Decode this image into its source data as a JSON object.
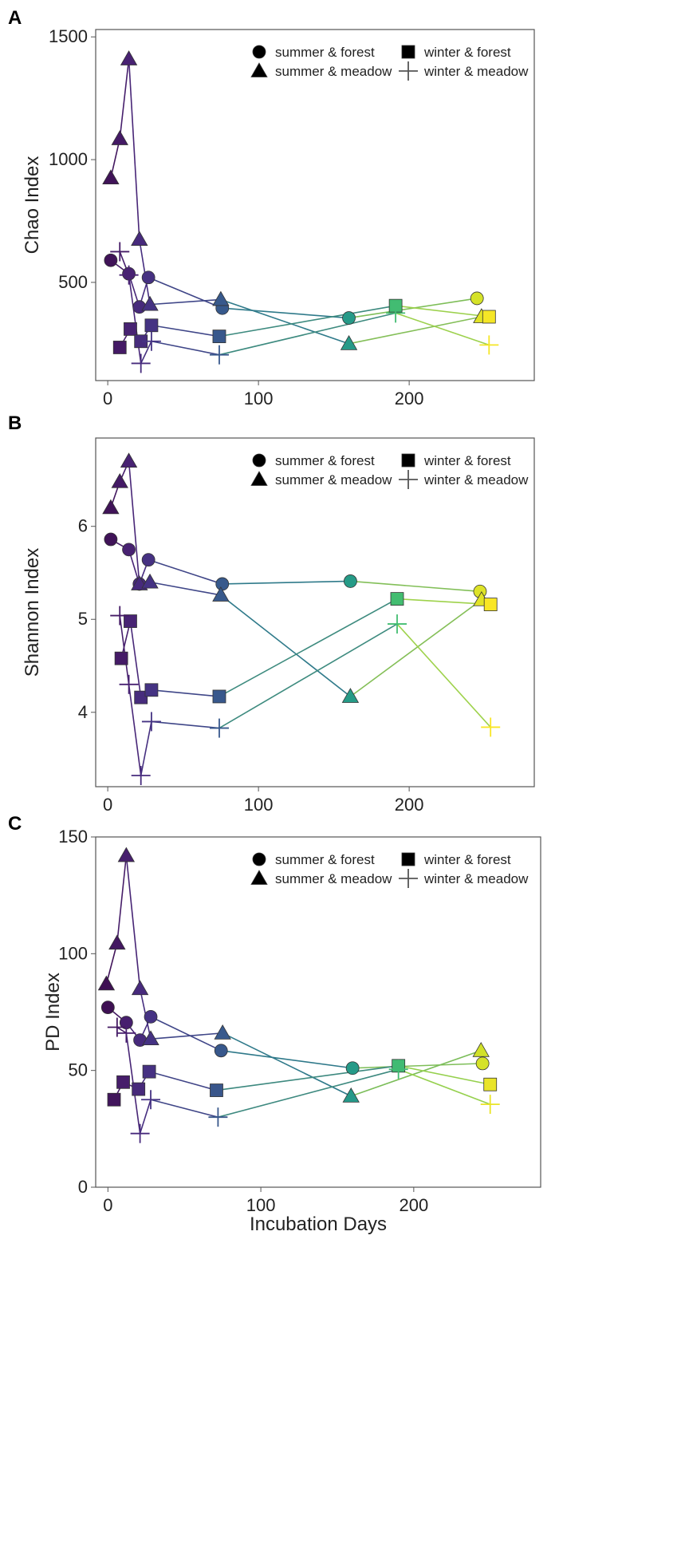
{
  "figure": {
    "xlabel": "Incubation Days"
  },
  "chart_data": [
    {
      "type": "scatter",
      "panel": "A",
      "title": "",
      "xlabel": "",
      "ylabel": "Chao Index",
      "xlim": [
        -8,
        283
      ],
      "ylim": [
        100,
        1530
      ],
      "xticks": [
        0,
        100,
        200
      ],
      "xtick_labels": [
        "0",
        "100",
        "200"
      ],
      "yticks": [
        500,
        1000,
        1500
      ],
      "ytick_labels": [
        "500",
        "1000",
        "1500"
      ],
      "legend": [
        {
          "label": "summer & forest",
          "marker": "circle"
        },
        {
          "label": "summer & meadow",
          "marker": "triangle"
        },
        {
          "label": "winter & forest",
          "marker": "square"
        },
        {
          "label": "winter & meadow",
          "marker": "plus"
        }
      ],
      "series": [
        {
          "name": "summer & forest",
          "marker": "circle",
          "x": [
            2,
            14,
            21,
            27,
            76,
            160,
            245
          ],
          "y": [
            590,
            535,
            400,
            520,
            395,
            355,
            435
          ]
        },
        {
          "name": "summer & meadow",
          "marker": "triangle",
          "x": [
            2,
            8,
            14,
            21,
            28,
            75,
            160,
            248
          ],
          "y": [
            925,
            1085,
            1410,
            675,
            410,
            430,
            250,
            360
          ]
        },
        {
          "name": "winter & forest",
          "marker": "square",
          "x": [
            8,
            15,
            22,
            29,
            74,
            191,
            253
          ],
          "y": [
            235,
            310,
            260,
            325,
            280,
            405,
            360
          ]
        },
        {
          "name": "winter & meadow",
          "marker": "plus",
          "x": [
            8,
            14,
            22,
            29,
            74,
            191,
            253
          ],
          "y": [
            625,
            530,
            170,
            260,
            205,
            375,
            245
          ]
        }
      ]
    },
    {
      "type": "scatter",
      "panel": "B",
      "title": "",
      "xlabel": "",
      "ylabel": "Shannon Index",
      "xlim": [
        -8,
        283
      ],
      "ylim": [
        3.2,
        6.95
      ],
      "xticks": [
        0,
        100,
        200
      ],
      "xtick_labels": [
        "0",
        "100",
        "200"
      ],
      "yticks": [
        4,
        5,
        6
      ],
      "ytick_labels": [
        "4",
        "5",
        "6"
      ],
      "legend": [
        {
          "label": "summer & forest",
          "marker": "circle"
        },
        {
          "label": "summer & meadow",
          "marker": "triangle"
        },
        {
          "label": "winter & forest",
          "marker": "square"
        },
        {
          "label": "winter & meadow",
          "marker": "plus"
        }
      ],
      "series": [
        {
          "name": "summer & forest",
          "marker": "circle",
          "x": [
            2,
            14,
            21,
            27,
            76,
            161,
            247
          ],
          "y": [
            5.86,
            5.75,
            5.38,
            5.64,
            5.38,
            5.41,
            5.3
          ]
        },
        {
          "name": "summer & meadow",
          "marker": "triangle",
          "x": [
            2,
            8,
            14,
            21,
            28,
            75,
            161,
            248
          ],
          "y": [
            6.2,
            6.48,
            6.7,
            5.38,
            5.4,
            5.26,
            4.17,
            5.21
          ]
        },
        {
          "name": "winter & forest",
          "marker": "square",
          "x": [
            9,
            15,
            22,
            29,
            74,
            192,
            254
          ],
          "y": [
            4.58,
            4.98,
            4.16,
            4.24,
            4.17,
            5.22,
            5.16
          ]
        },
        {
          "name": "winter & meadow",
          "marker": "plus",
          "x": [
            8,
            14,
            22,
            29,
            74,
            192,
            254
          ],
          "y": [
            5.04,
            4.3,
            3.32,
            3.9,
            3.83,
            4.95,
            3.84
          ]
        }
      ]
    },
    {
      "type": "scatter",
      "panel": "C",
      "title": "",
      "xlabel": "Incubation Days",
      "ylabel": "PD Index",
      "xlim": [
        -8,
        283
      ],
      "ylim": [
        0,
        150
      ],
      "xticks": [
        0,
        100,
        200
      ],
      "xtick_labels": [
        "0",
        "100",
        "200"
      ],
      "yticks": [
        0,
        50,
        100,
        150
      ],
      "ytick_labels": [
        "0",
        "50",
        "100",
        "150"
      ],
      "legend": [
        {
          "label": "summer & forest",
          "marker": "circle"
        },
        {
          "label": "summer & meadow",
          "marker": "triangle"
        },
        {
          "label": "winter & forest",
          "marker": "square"
        },
        {
          "label": "winter & meadow",
          "marker": "plus"
        }
      ],
      "series": [
        {
          "name": "summer & forest",
          "marker": "circle",
          "x": [
            0,
            12,
            21,
            28,
            74,
            160,
            245
          ],
          "y": [
            77,
            70.5,
            63,
            73,
            58.5,
            51,
            53
          ]
        },
        {
          "name": "summer & meadow",
          "marker": "triangle",
          "x": [
            -1,
            6,
            12,
            21,
            28,
            75,
            159,
            244
          ],
          "y": [
            87,
            104.5,
            142,
            85,
            63.5,
            66,
            39,
            58.5
          ]
        },
        {
          "name": "winter & forest",
          "marker": "square",
          "x": [
            4,
            10,
            20,
            27,
            71,
            190,
            250
          ],
          "y": [
            37.5,
            45,
            42,
            49.5,
            41.5,
            52,
            44
          ]
        },
        {
          "name": "winter & meadow",
          "marker": "plus",
          "x": [
            6,
            12,
            21,
            28,
            72,
            190,
            250
          ],
          "y": [
            68.5,
            66,
            23,
            37.5,
            30,
            50.5,
            35.5
          ]
        }
      ]
    }
  ]
}
